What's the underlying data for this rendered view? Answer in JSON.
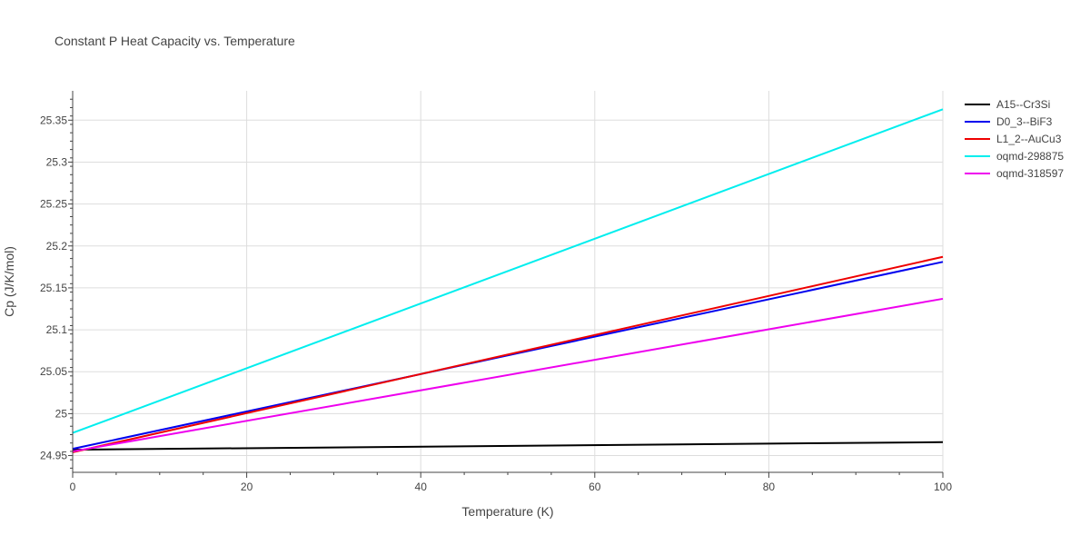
{
  "chart_data": {
    "type": "line",
    "title": "Constant P Heat Capacity vs. Temperature",
    "xlabel": "Temperature (K)",
    "ylabel": "Cp (J/K/mol)",
    "xlim": [
      0,
      100
    ],
    "ylim": [
      24.93,
      25.385
    ],
    "x_ticks": [
      0,
      20,
      40,
      60,
      80,
      100
    ],
    "y_ticks": [
      24.95,
      25,
      25.05,
      25.1,
      25.15,
      25.2,
      25.25,
      25.3,
      25.35
    ],
    "y_tick_labels": [
      "24.95",
      "25",
      "25.05",
      "25.1",
      "25.15",
      "25.2",
      "25.25",
      "25.3",
      "25.35"
    ],
    "grid": true,
    "legend_position": "top-right outside",
    "series": [
      {
        "name": "A15--Cr3Si",
        "color": "#000000",
        "x": [
          0,
          100
        ],
        "y": [
          24.957,
          24.966
        ]
      },
      {
        "name": "D0_3--BiF3",
        "color": "#0000ee",
        "x": [
          0,
          100
        ],
        "y": [
          24.958,
          25.181
        ]
      },
      {
        "name": "L1_2--AuCu3",
        "color": "#ee0000",
        "x": [
          0,
          100
        ],
        "y": [
          24.954,
          25.187
        ]
      },
      {
        "name": "oqmd-298875",
        "color": "#00eeee",
        "x": [
          0,
          100
        ],
        "y": [
          24.977,
          25.363
        ]
      },
      {
        "name": "oqmd-318597",
        "color": "#ee00ee",
        "x": [
          0,
          100
        ],
        "y": [
          24.955,
          25.137
        ]
      }
    ]
  }
}
